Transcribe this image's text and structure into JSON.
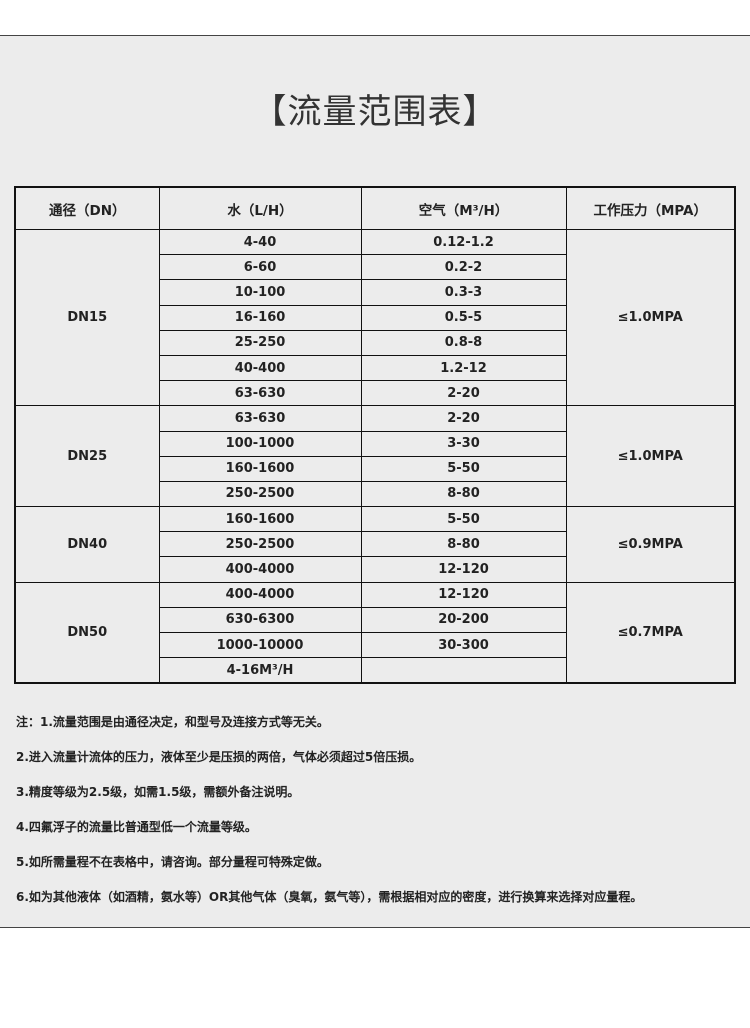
{
  "title": "【流量范围表】",
  "table": {
    "headers": [
      "通径（DN）",
      "水（L/H）",
      "空气（M³/H）",
      "工作压力（MPA）"
    ],
    "groups": [
      {
        "dn": "DN15",
        "pressure": "≤1.0MPA",
        "rows": [
          [
            "4-40",
            "0.12-1.2"
          ],
          [
            "6-60",
            "0.2-2"
          ],
          [
            "10-100",
            "0.3-3"
          ],
          [
            "16-160",
            "0.5-5"
          ],
          [
            "25-250",
            "0.8-8"
          ],
          [
            "40-400",
            "1.2-12"
          ],
          [
            "63-630",
            "2-20"
          ]
        ]
      },
      {
        "dn": "DN25",
        "pressure": "≤1.0MPA",
        "rows": [
          [
            "63-630",
            "2-20"
          ],
          [
            "100-1000",
            "3-30"
          ],
          [
            "160-1600",
            "5-50"
          ],
          [
            "250-2500",
            "8-80"
          ]
        ]
      },
      {
        "dn": "DN40",
        "pressure": "≤0.9MPA",
        "rows": [
          [
            "160-1600",
            "5-50"
          ],
          [
            "250-2500",
            "8-80"
          ],
          [
            "400-4000",
            "12-120"
          ]
        ]
      },
      {
        "dn": "DN50",
        "pressure": "≤0.7MPA",
        "rows": [
          [
            "400-4000",
            "12-120"
          ],
          [
            "630-6300",
            "20-200"
          ],
          [
            "1000-10000",
            "30-300"
          ],
          [
            "4-16M³/H",
            ""
          ]
        ]
      }
    ]
  },
  "notes": [
    "注：1.流量范围是由通径决定，和型号及连接方式等无关。",
    "2.进入流量计流体的压力，液体至少是压损的两倍，气体必须超过5倍压损。",
    "3.精度等级为2.5级，如需1.5级，需额外备注说明。",
    "4.四氟浮子的流量比普通型低一个流量等级。",
    "5.如所需量程不在表格中，请咨询。部分量程可特殊定做。",
    "6.如为其他液体（如酒精，氨水等）OR其他气体（臭氧，氨气等），需根据相对应的密度，进行换算来选择对应量程。"
  ]
}
